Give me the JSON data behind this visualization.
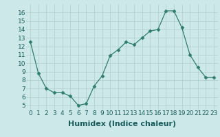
{
  "x": [
    0,
    1,
    2,
    3,
    4,
    5,
    6,
    7,
    8,
    9,
    10,
    11,
    12,
    13,
    14,
    15,
    16,
    17,
    18,
    19,
    20,
    21,
    22,
    23
  ],
  "y": [
    12.5,
    8.8,
    7.0,
    6.5,
    6.5,
    6.1,
    5.0,
    5.2,
    7.3,
    8.5,
    10.9,
    11.6,
    12.5,
    12.2,
    13.0,
    13.8,
    14.0,
    16.2,
    16.2,
    14.2,
    11.0,
    9.5,
    8.3,
    8.3
  ],
  "xlabel": "Humidex (Indice chaleur)",
  "ylim": [
    4.5,
    17
  ],
  "xlim": [
    -0.5,
    23.5
  ],
  "yticks": [
    5,
    6,
    7,
    8,
    9,
    10,
    11,
    12,
    13,
    14,
    15,
    16
  ],
  "xticks": [
    0,
    1,
    2,
    3,
    4,
    5,
    6,
    7,
    8,
    9,
    10,
    11,
    12,
    13,
    14,
    15,
    16,
    17,
    18,
    19,
    20,
    21,
    22,
    23
  ],
  "line_color": "#2e7d6e",
  "marker": "D",
  "marker_size": 2.5,
  "bg_color": "#cce8e8",
  "grid_color": "#b0cccc",
  "xlabel_fontsize": 8,
  "tick_fontsize": 6.5
}
